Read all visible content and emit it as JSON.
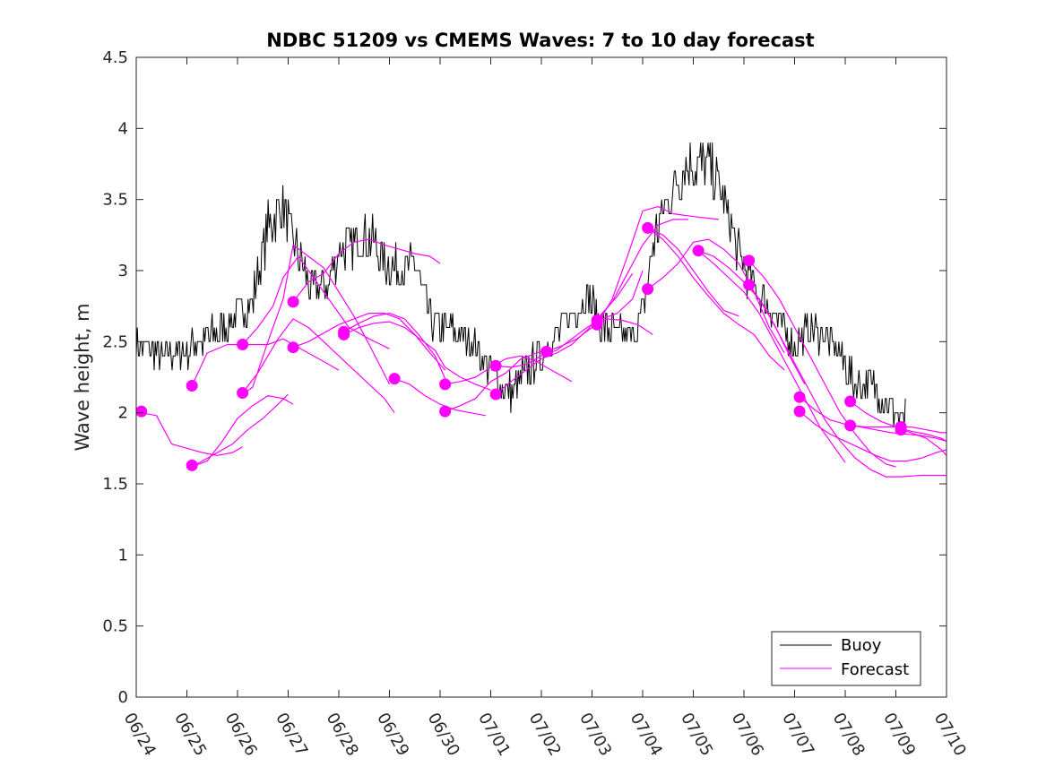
{
  "chart_data": {
    "type": "line",
    "title": "NDBC 51209 vs CMEMS Waves: 7 to 10 day forecast",
    "ylabel": "Wave height, m",
    "xlabel": "",
    "x_range_days": [
      0,
      16
    ],
    "xticks": [
      "06/24",
      "06/25",
      "06/26",
      "06/27",
      "06/28",
      "06/29",
      "06/30",
      "07/01",
      "07/02",
      "07/03",
      "07/04",
      "07/05",
      "07/06",
      "07/07",
      "07/08",
      "07/09",
      "07/10"
    ],
    "ylim": [
      0,
      4.5
    ],
    "yticks": [
      "0",
      "0.5",
      "1",
      "1.5",
      "2",
      "2.5",
      "3",
      "3.5",
      "4",
      "4.5"
    ],
    "grid": false,
    "legend_position": "bottom-right",
    "colors": {
      "buoy": "#000000",
      "forecast": "#ff00ff"
    },
    "series": [
      {
        "name": "Buoy",
        "x_day_offset": [
          0,
          0.5,
          1,
          1.5,
          1.8,
          2,
          2.3,
          2.6,
          2.9,
          3.2,
          3.5,
          3.8,
          4,
          4.3,
          4.6,
          4.9,
          5.2,
          5.5,
          5.8,
          6,
          6.3,
          6.6,
          6.9,
          7.1,
          7.4,
          7.7,
          8,
          8.3,
          8.6,
          8.9,
          9.2,
          9.5,
          9.8,
          10,
          10.2,
          10.5,
          10.8,
          11,
          11.3,
          11.6,
          11.9,
          12.2,
          12.5,
          12.8,
          13,
          13.3,
          13.6,
          13.9,
          14.2,
          14.5,
          14.8,
          15.1,
          15.2
        ],
        "values": [
          2.5,
          2.4,
          2.45,
          2.55,
          2.6,
          2.7,
          2.8,
          3.3,
          3.45,
          3.1,
          2.85,
          2.9,
          3.15,
          3.2,
          3.25,
          3.05,
          3.0,
          3.05,
          2.65,
          2.6,
          2.55,
          2.5,
          2.35,
          2.25,
          2.15,
          2.3,
          2.4,
          2.55,
          2.7,
          2.85,
          2.6,
          2.55,
          2.55,
          2.7,
          3.2,
          3.5,
          3.7,
          3.75,
          3.75,
          3.5,
          3.1,
          2.9,
          2.75,
          2.55,
          2.45,
          2.6,
          2.55,
          2.4,
          2.2,
          2.2,
          2.1,
          1.95,
          2.0
        ]
      },
      {
        "name": "Forecast",
        "segments": [
          {
            "x_day_offset": [
              0.1,
              0.4,
              0.7,
              1.0,
              1.3,
              1.6,
              1.9,
              2.1
            ],
            "values": [
              2.0,
              1.98,
              1.78,
              1.75,
              1.72,
              1.7,
              1.72,
              1.76
            ]
          },
          {
            "x_day_offset": [
              1.1,
              1.4,
              1.8,
              2.2,
              2.6,
              2.9,
              3.3,
              3.7,
              4.0
            ],
            "values": [
              2.19,
              2.42,
              2.48,
              2.48,
              2.48,
              2.52,
              2.44,
              2.36,
              2.3
            ]
          },
          {
            "x_day_offset": [
              1.1,
              1.4,
              1.7,
              2.0,
              2.3,
              2.6,
              2.9,
              3.1
            ],
            "values": [
              1.62,
              1.66,
              1.8,
              1.96,
              2.05,
              2.12,
              2.1,
              2.06
            ]
          },
          {
            "x_day_offset": [
              1.1,
              1.5,
              1.9,
              2.2,
              2.5,
              2.8,
              3.0
            ],
            "values": [
              1.62,
              1.7,
              1.78,
              1.88,
              1.96,
              2.06,
              2.13
            ]
          },
          {
            "x_day_offset": [
              2.1,
              2.3,
              2.6,
              2.9,
              3.1,
              3.4,
              3.7,
              4.0,
              4.3,
              4.6,
              5.0
            ],
            "values": [
              2.13,
              2.18,
              2.5,
              2.8,
              3.18,
              3.1,
              3.02,
              2.85,
              2.68,
              2.48,
              2.2
            ]
          },
          {
            "x_day_offset": [
              2.1,
              2.4,
              2.7,
              2.9,
              3.2,
              3.5,
              3.9,
              4.2,
              4.6,
              5.0
            ],
            "values": [
              2.48,
              2.6,
              2.75,
              2.95,
              3.1,
              2.95,
              2.75,
              2.6,
              2.52,
              2.45
            ]
          },
          {
            "x_day_offset": [
              2.1,
              2.4,
              2.8,
              3.1,
              3.4,
              3.7,
              4.0,
              4.3,
              4.6,
              4.9,
              5.1
            ],
            "values": [
              2.14,
              2.28,
              2.52,
              2.66,
              2.6,
              2.5,
              2.4,
              2.3,
              2.2,
              2.1,
              2.0
            ]
          },
          {
            "x_day_offset": [
              3.1,
              3.4,
              3.7,
              4.0,
              4.3,
              4.6,
              4.9,
              5.2,
              5.5,
              5.8,
              6.0
            ],
            "values": [
              2.78,
              2.92,
              2.98,
              3.12,
              3.2,
              3.22,
              3.18,
              3.15,
              3.12,
              3.1,
              3.05
            ]
          },
          {
            "x_day_offset": [
              3.1,
              3.4,
              3.7,
              4.0,
              4.3,
              4.6,
              4.9,
              5.2,
              5.5,
              5.8,
              6.1
            ],
            "values": [
              2.46,
              2.5,
              2.56,
              2.62,
              2.66,
              2.7,
              2.7,
              2.66,
              2.55,
              2.42,
              2.3
            ]
          },
          {
            "x_day_offset": [
              4.1,
              4.4,
              4.7,
              5.0,
              5.3,
              5.6,
              5.9,
              6.1
            ],
            "values": [
              2.57,
              2.63,
              2.68,
              2.7,
              2.66,
              2.54,
              2.4,
              2.24
            ]
          },
          {
            "x_day_offset": [
              4.1,
              4.4,
              4.7,
              5.0,
              5.3,
              5.6,
              5.9,
              6.1,
              6.4,
              6.7,
              7.0
            ],
            "values": [
              2.55,
              2.6,
              2.63,
              2.64,
              2.6,
              2.52,
              2.44,
              2.32,
              2.25,
              2.2,
              2.16
            ]
          },
          {
            "x_day_offset": [
              5.1,
              5.4,
              5.7,
              6.0,
              6.3,
              6.6,
              6.9
            ],
            "values": [
              2.24,
              2.2,
              2.12,
              2.06,
              2.02,
              2.0,
              1.98
            ]
          },
          {
            "x_day_offset": [
              6.1,
              6.4,
              6.7,
              7.0,
              7.3,
              7.6,
              7.9,
              8.2,
              8.6
            ],
            "values": [
              2.2,
              2.22,
              2.25,
              2.32,
              2.38,
              2.4,
              2.36,
              2.3,
              2.22
            ]
          },
          {
            "x_day_offset": [
              6.1,
              6.4,
              6.7,
              7.0,
              7.3,
              7.6,
              7.9,
              8.2
            ],
            "values": [
              2.01,
              2.05,
              2.1,
              2.22,
              2.28,
              2.38,
              2.42,
              2.45
            ]
          },
          {
            "x_day_offset": [
              7.1,
              7.4,
              7.7,
              8.0,
              8.3,
              8.6,
              8.9,
              9.2,
              9.5,
              9.8
            ],
            "values": [
              2.13,
              2.22,
              2.3,
              2.38,
              2.42,
              2.48,
              2.58,
              2.7,
              2.82,
              2.98
            ]
          },
          {
            "x_day_offset": [
              7.1,
              7.4,
              7.7,
              8.0,
              8.3,
              8.6,
              8.9,
              9.2,
              9.5,
              9.8,
              10.0
            ],
            "values": [
              2.33,
              2.32,
              2.34,
              2.4,
              2.44,
              2.52,
              2.6,
              2.66,
              2.7,
              2.8,
              3.0
            ]
          },
          {
            "x_day_offset": [
              8.1,
              8.4,
              8.7,
              9.0,
              9.3,
              9.6,
              9.9,
              10.2
            ],
            "values": [
              2.43,
              2.47,
              2.52,
              2.6,
              2.66,
              2.65,
              2.62,
              2.55
            ]
          },
          {
            "x_day_offset": [
              9.1,
              9.4,
              9.7,
              10.0,
              10.3,
              10.6,
              11.0,
              11.5
            ],
            "values": [
              2.62,
              2.8,
              3.1,
              3.42,
              3.45,
              3.4,
              3.38,
              3.36
            ]
          },
          {
            "x_day_offset": [
              9.1,
              9.4,
              9.7,
              10.0,
              10.3,
              10.6,
              10.9
            ],
            "values": [
              2.65,
              2.78,
              2.98,
              3.18,
              3.32,
              3.36,
              3.36
            ]
          },
          {
            "x_day_offset": [
              10.1,
              10.4,
              10.7,
              11.0,
              11.3,
              11.6,
              11.9
            ],
            "values": [
              3.3,
              3.25,
              3.15,
              3.0,
              2.85,
              2.72,
              2.68
            ]
          },
          {
            "x_day_offset": [
              10.1,
              10.4,
              10.7,
              11.0,
              11.3,
              11.6,
              11.9,
              12.2,
              12.5,
              12.8
            ],
            "values": [
              2.87,
              2.95,
              3.05,
              3.2,
              3.22,
              3.15,
              3.05,
              2.85,
              2.6,
              2.42
            ]
          },
          {
            "x_day_offset": [
              10.1,
              10.4,
              10.7,
              11.0,
              11.3,
              11.6,
              11.9,
              12.2,
              12.5,
              12.8
            ],
            "values": [
              3.3,
              3.22,
              3.1,
              2.95,
              2.82,
              2.7,
              2.62,
              2.55,
              2.4,
              2.3
            ]
          },
          {
            "x_day_offset": [
              11.1,
              11.4,
              11.7,
              12.0,
              12.3,
              12.6,
              12.9,
              13.2
            ],
            "values": [
              3.14,
              3.1,
              3.02,
              2.92,
              2.8,
              2.62,
              2.4,
              2.2
            ]
          },
          {
            "x_day_offset": [
              11.1,
              11.4,
              11.7,
              12.0,
              12.3,
              12.6,
              12.9,
              13.2,
              13.5,
              13.8,
              14.0
            ],
            "values": [
              3.14,
              3.05,
              2.95,
              2.85,
              2.7,
              2.5,
              2.3,
              2.1,
              1.9,
              1.75,
              1.65
            ]
          },
          {
            "x_day_offset": [
              12.1,
              12.4,
              12.7,
              13.0,
              13.3,
              13.6,
              13.9,
              14.2,
              14.5,
              14.8,
              15.0
            ],
            "values": [
              3.07,
              2.95,
              2.8,
              2.6,
              2.4,
              2.2,
              2.0,
              1.85,
              1.72,
              1.64,
              1.62
            ]
          },
          {
            "x_day_offset": [
              12.1,
              12.4,
              12.7,
              13.0,
              13.3,
              13.6,
              13.9,
              14.2,
              14.5,
              14.8,
              15.1,
              15.5,
              16.0
            ],
            "values": [
              2.9,
              2.75,
              2.55,
              2.35,
              2.15,
              1.95,
              1.8,
              1.68,
              1.6,
              1.55,
              1.55,
              1.56,
              1.56
            ]
          },
          {
            "x_day_offset": [
              13.1,
              13.4,
              13.7,
              14.0,
              14.3,
              14.6,
              14.9,
              15.2,
              15.5,
              15.8,
              16.0
            ],
            "values": [
              2.11,
              2.02,
              1.95,
              1.92,
              1.9,
              1.88,
              1.86,
              1.85,
              1.84,
              1.82,
              1.8
            ]
          },
          {
            "x_day_offset": [
              13.1,
              13.4,
              13.7,
              14.0,
              14.3,
              14.6,
              14.9,
              15.2,
              15.5,
              15.8,
              16.0
            ],
            "values": [
              2.01,
              1.92,
              1.85,
              1.8,
              1.75,
              1.7,
              1.66,
              1.66,
              1.68,
              1.72,
              1.74
            ]
          },
          {
            "x_day_offset": [
              14.1,
              14.4,
              14.7,
              15.0,
              15.3,
              15.6,
              15.9,
              16.0
            ],
            "values": [
              2.08,
              2.0,
              1.94,
              1.9,
              1.87,
              1.85,
              1.82,
              1.8
            ]
          },
          {
            "x_day_offset": [
              14.1,
              14.4,
              14.7,
              15.0,
              15.3,
              15.6,
              15.9,
              16.0
            ],
            "values": [
              1.91,
              1.9,
              1.9,
              1.9,
              1.9,
              1.88,
              1.86,
              1.86
            ]
          },
          {
            "x_day_offset": [
              15.1,
              15.3,
              15.6,
              15.9,
              16.0
            ],
            "values": [
              1.88,
              1.86,
              1.82,
              1.74,
              1.7
            ]
          }
        ],
        "markers": [
          [
            0.1,
            2.01
          ],
          [
            1.1,
            2.19
          ],
          [
            1.1,
            1.63
          ],
          [
            2.1,
            2.48
          ],
          [
            2.1,
            2.14
          ],
          [
            3.1,
            2.78
          ],
          [
            3.1,
            2.46
          ],
          [
            4.1,
            2.57
          ],
          [
            4.1,
            2.55
          ],
          [
            5.1,
            2.24
          ],
          [
            6.1,
            2.2
          ],
          [
            6.1,
            2.01
          ],
          [
            7.1,
            2.33
          ],
          [
            7.1,
            2.13
          ],
          [
            8.1,
            2.43
          ],
          [
            9.1,
            2.65
          ],
          [
            9.1,
            2.62
          ],
          [
            10.1,
            3.3
          ],
          [
            10.1,
            2.87
          ],
          [
            11.1,
            3.14
          ],
          [
            12.1,
            3.07
          ],
          [
            12.1,
            2.9
          ],
          [
            13.1,
            2.11
          ],
          [
            13.1,
            2.01
          ],
          [
            14.1,
            2.08
          ],
          [
            14.1,
            1.91
          ],
          [
            15.1,
            1.9
          ],
          [
            15.1,
            1.88
          ]
        ]
      }
    ]
  }
}
